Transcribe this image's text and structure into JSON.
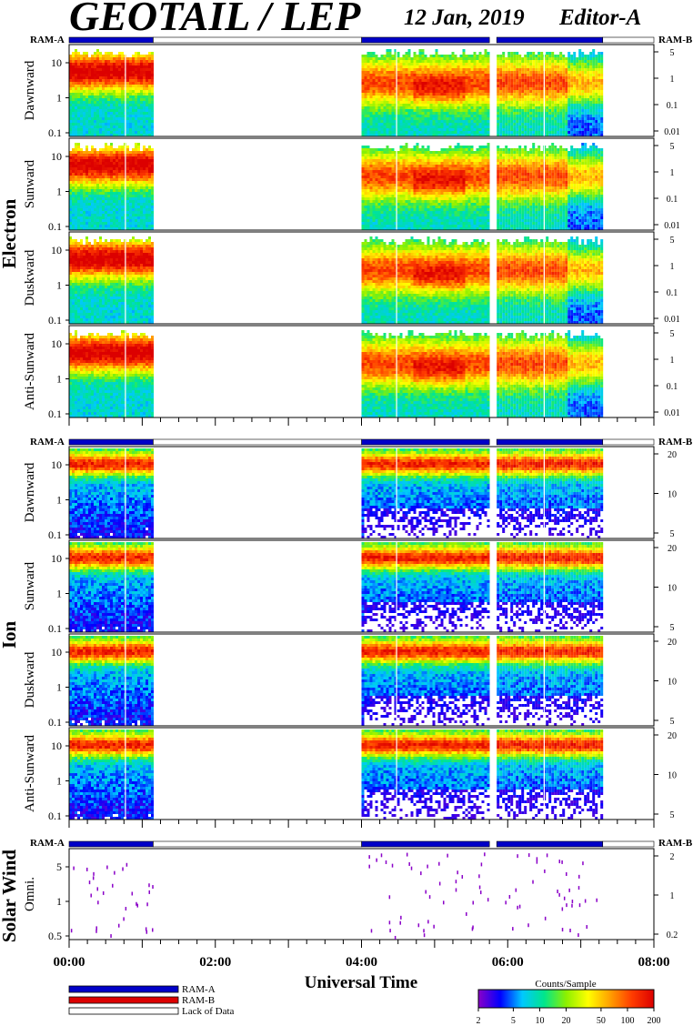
{
  "header": {
    "title": "GEOTAIL / LEP",
    "date": "12 Jan, 2019",
    "editor": "Editor-A"
  },
  "colors": {
    "ram_a": "#0000c8",
    "ram_b": "#dc0000",
    "lack_of_data": "#ffffff",
    "frame": "#000000"
  },
  "labels": {
    "ram_a": "RAM-A",
    "ram_b": "RAM-B",
    "lack_of_data": "Lack of Data",
    "x_axis": "Universal Time",
    "colorbar_title": "Counts/Sample"
  },
  "colorbar": {
    "ticks": [
      "2",
      "5",
      "10",
      "20",
      "50",
      "100",
      "200"
    ],
    "scale": "log",
    "colors": [
      "#8a00c8",
      "#0000ff",
      "#00c8ff",
      "#00e68c",
      "#8cf000",
      "#ffff00",
      "#ffa000",
      "#ff3c00",
      "#dc0000"
    ]
  },
  "chart_data": {
    "type": "heatmap",
    "x_axis": {
      "label": "Universal Time",
      "range_hours": [
        0,
        8
      ],
      "tick_labels": [
        "00:00",
        "02:00",
        "04:00",
        "06:00",
        "08:00"
      ]
    },
    "data_intervals_hours": [
      [
        0.0,
        1.15
      ],
      [
        4.0,
        5.75
      ],
      [
        5.85,
        7.3
      ]
    ],
    "mode_bar": [
      {
        "start": 0.0,
        "end": 1.15,
        "mode": "RAM-A"
      },
      {
        "start": 4.0,
        "end": 5.75,
        "mode": "RAM-A"
      },
      {
        "start": 5.85,
        "end": 7.3,
        "mode": "RAM-A"
      },
      {
        "start": 7.3,
        "end": 8.0,
        "mode": "Lack of Data"
      }
    ],
    "groups": [
      {
        "name": "Electron",
        "left_ticks": [
          "10",
          "1",
          "0.1"
        ],
        "right_ticks": [
          "5",
          "1",
          "0.1",
          "0.01"
        ],
        "panels": [
          "Dawnward",
          "Sunward",
          "Duskward",
          "Anti-Sunward"
        ]
      },
      {
        "name": "Ion",
        "left_ticks": [
          "10",
          "1",
          "0.1"
        ],
        "right_ticks": [
          "20",
          "10",
          "5"
        ],
        "panels": [
          "Dawnward",
          "Sunward",
          "Duskward",
          "Anti-Sunward"
        ]
      },
      {
        "name": "Solar Wind",
        "left_ticks": [
          "5",
          "1",
          "0.5"
        ],
        "right_ticks": [
          "2",
          "1",
          "0.2"
        ],
        "panels": [
          "Omni."
        ]
      }
    ]
  }
}
